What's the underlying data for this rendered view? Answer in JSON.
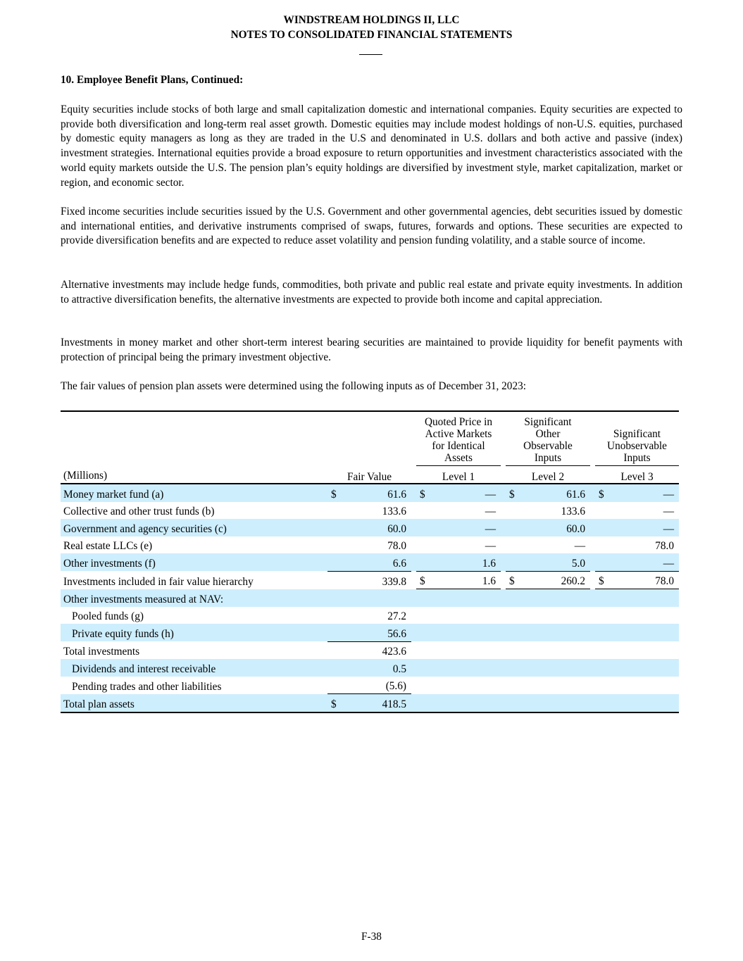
{
  "header": {
    "company": "WINDSTREAM HOLDINGS II, LLC",
    "title": "NOTES TO CONSOLIDATED FINANCIAL STATEMENTS"
  },
  "section_title": "10. Employee Benefit Plans, Continued:",
  "paragraphs": [
    "Equity securities include stocks of both large and small capitalization domestic and international companies. Equity securities are expected to provide both diversification and long-term real asset growth. Domestic equities may include modest holdings of non-U.S. equities, purchased by domestic equity managers as long as they are traded in the U.S and denominated in U.S. dollars and both active and passive (index) investment strategies. International equities provide a broad exposure to return opportunities and investment characteristics associated with the world equity markets outside the U.S. The pension plan’s equity holdings are diversified by investment style, market capitalization, market or region, and economic sector.",
    "Fixed income securities include securities issued by the U.S. Government and other governmental agencies, debt securities issued by domestic and international entities, and derivative instruments comprised of swaps, futures, forwards and options. These securities are expected to provide diversification benefits and are expected to reduce asset volatility and pension funding volatility, and a stable source of income.",
    "Alternative investments may include hedge funds, commodities, both private and public real estate and private equity investments. In addition to attractive diversification benefits, the alternative investments are expected to provide both income and capital appreciation.",
    "Investments in money market and other short-term interest bearing securities are maintained to provide liquidity for benefit payments with protection of principal being the primary investment objective.",
    "The fair values of pension plan assets were determined using the following inputs as of December 31, 2023:"
  ],
  "table": {
    "units_label": "(Millions)",
    "columns": [
      {
        "heading": "",
        "level": "Fair Value"
      },
      {
        "heading": "Quoted Price in Active Markets for Identical Assets",
        "level": "Level 1"
      },
      {
        "heading": "Significant Other Observable Inputs",
        "level": "Level 2"
      },
      {
        "heading": "Significant Unobservable Inputs",
        "level": "Level 3"
      }
    ],
    "rows": [
      {
        "label": "Money market fund (a)",
        "values": [
          [
            "$",
            "61.6"
          ],
          [
            "$",
            "—"
          ],
          [
            "$",
            "61.6"
          ],
          [
            "$",
            "—"
          ]
        ]
      },
      {
        "label": "Collective and other trust funds (b)",
        "values": [
          [
            "",
            "133.6"
          ],
          [
            "",
            "—"
          ],
          [
            "",
            "133.6"
          ],
          [
            "",
            "—"
          ]
        ]
      },
      {
        "label": "Government and agency securities (c)",
        "values": [
          [
            "",
            "60.0"
          ],
          [
            "",
            "—"
          ],
          [
            "",
            "60.0"
          ],
          [
            "",
            "—"
          ]
        ]
      },
      {
        "label": "Real estate LLCs (e)",
        "values": [
          [
            "",
            "78.0"
          ],
          [
            "",
            "—"
          ],
          [
            "",
            "—"
          ],
          [
            "",
            "78.0"
          ]
        ]
      },
      {
        "label": "Other investments (f)",
        "values": [
          [
            "",
            "6.6"
          ],
          [
            "",
            "1.6"
          ],
          [
            "",
            "5.0"
          ],
          [
            "",
            "—"
          ]
        ]
      },
      {
        "label": "Investments included in fair value hierarchy",
        "values": [
          [
            "",
            "339.8"
          ],
          [
            "$",
            "1.6"
          ],
          [
            "$",
            "260.2"
          ],
          [
            "$",
            "78.0"
          ]
        ]
      },
      {
        "label": "Other investments measured at NAV:",
        "values": [
          [
            "",
            ""
          ],
          [
            "",
            ""
          ],
          [
            "",
            ""
          ],
          [
            "",
            ""
          ]
        ]
      },
      {
        "label": "Pooled funds (g)",
        "values": [
          [
            "",
            "27.2"
          ],
          [
            "",
            ""
          ],
          [
            "",
            ""
          ],
          [
            "",
            ""
          ]
        ]
      },
      {
        "label": "Private equity funds (h)",
        "values": [
          [
            "",
            "56.6"
          ],
          [
            "",
            ""
          ],
          [
            "",
            ""
          ],
          [
            "",
            ""
          ]
        ]
      },
      {
        "label": "Total investments",
        "values": [
          [
            "",
            "423.6"
          ],
          [
            "",
            ""
          ],
          [
            "",
            ""
          ],
          [
            "",
            ""
          ]
        ]
      },
      {
        "label": "Dividends and interest receivable",
        "values": [
          [
            "",
            "0.5"
          ],
          [
            "",
            ""
          ],
          [
            "",
            ""
          ],
          [
            "",
            ""
          ]
        ]
      },
      {
        "label": "Pending trades and other liabilities",
        "values": [
          [
            "",
            "(5.6)"
          ],
          [
            "",
            ""
          ],
          [
            "",
            ""
          ],
          [
            "",
            ""
          ]
        ]
      },
      {
        "label": "Total plan assets",
        "values": [
          [
            "$",
            "418.5"
          ],
          [
            "",
            ""
          ],
          [
            "",
            ""
          ],
          [
            "",
            ""
          ]
        ]
      }
    ]
  },
  "footer": {
    "page_number": "F-38"
  },
  "colors": {
    "row_shade": "#cdeefd"
  }
}
